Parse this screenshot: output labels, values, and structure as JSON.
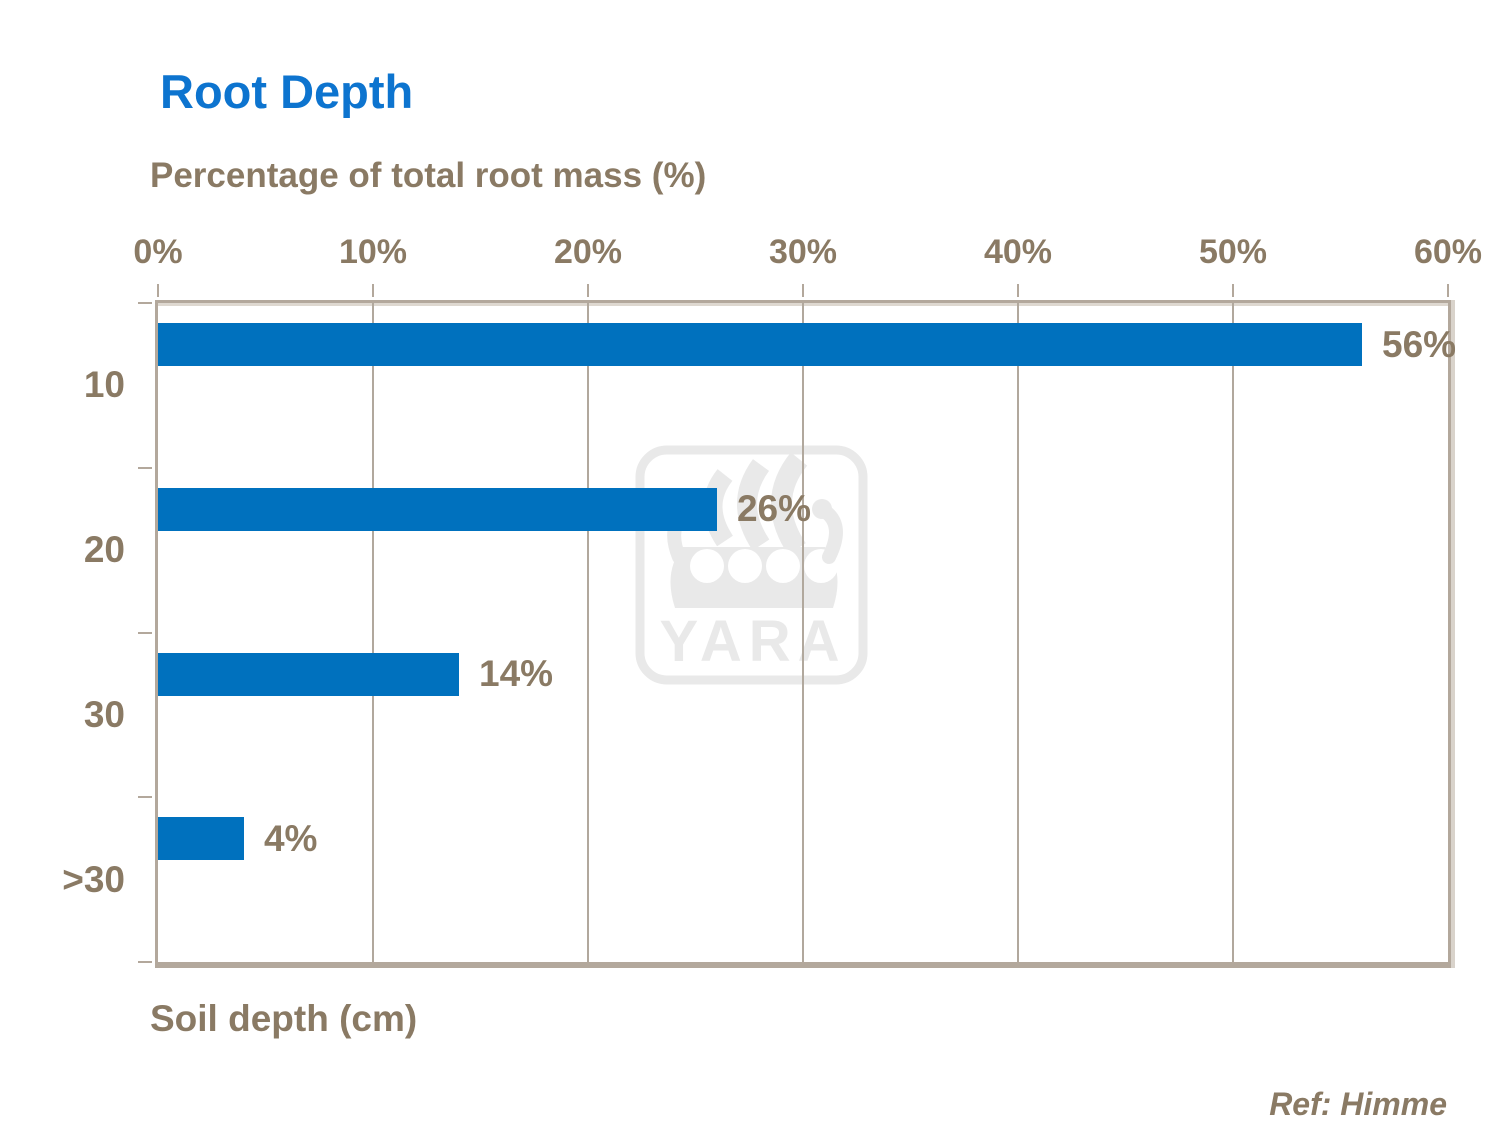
{
  "page": {
    "title": "Root Depth",
    "reference": "Ref: Himme"
  },
  "chart_data": {
    "type": "bar",
    "orientation": "horizontal",
    "title": "Root Depth",
    "categories": [
      "10",
      "20",
      "30",
      ">30"
    ],
    "values": [
      56,
      26,
      14,
      4
    ],
    "data_labels": [
      "56%",
      "26%",
      "14%",
      "4%"
    ],
    "x_axis": {
      "label": "Percentage of total root mass (%)",
      "position": "top",
      "min": 0,
      "max": 60,
      "ticks": [
        0,
        10,
        20,
        30,
        40,
        50,
        60
      ],
      "tick_labels": [
        "0%",
        "10%",
        "20%",
        "30%",
        "40%",
        "50%",
        "60%"
      ]
    },
    "y_axis": {
      "label": "Soil depth (cm)",
      "position": "left"
    },
    "grid": {
      "vertical": true,
      "horizontal": false
    },
    "legend": "none",
    "colors": {
      "bar": "#0071be",
      "title": "#0d74cf",
      "text": "#8a7a64",
      "axis": "#b3a89c",
      "gridline": "#b1a89d",
      "watermark": "#e9e9e9"
    }
  },
  "watermark": {
    "name": "yara-logo",
    "wordmark": "YARA"
  }
}
